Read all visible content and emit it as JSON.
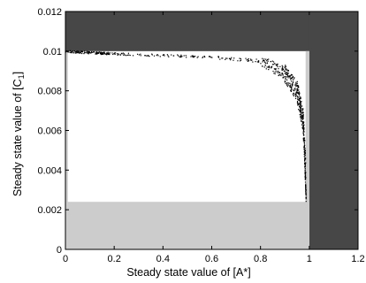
{
  "chart_data": {
    "type": "scatter",
    "title": "",
    "xlabel": "Steady state value of [A*]",
    "ylabel": "Steady state value of [C",
    "ylabel_subscript": "1",
    "ylabel_suffix": "]",
    "xlim": [
      0,
      1.2
    ],
    "ylim": [
      0,
      0.012
    ],
    "xticks": [
      "0",
      "0.2",
      "0.4",
      "0.6",
      "0.8",
      "1",
      "1.2"
    ],
    "yticks": [
      "0",
      "0.002",
      "0.004",
      "0.006",
      "0.008",
      "0.01",
      "0.012"
    ],
    "grid": false,
    "legend": "none",
    "shaded_regions": [
      {
        "kind": "dark",
        "color": "#474747",
        "x": [
          0,
          1.2
        ],
        "y": [
          0.01,
          0.012
        ]
      },
      {
        "kind": "dark",
        "color": "#474747",
        "x": [
          1,
          1.2
        ],
        "y": [
          0,
          0.012
        ]
      },
      {
        "kind": "light",
        "color": "#cccccc",
        "x": [
          0,
          1
        ],
        "y": [
          0,
          0.0024
        ]
      },
      {
        "kind": "light",
        "color": "#cccccc",
        "x": [
          0.985,
          1
        ],
        "y": [
          0,
          0.01
        ]
      },
      {
        "kind": "light",
        "color": "#cccccc",
        "x": [
          0,
          0.01
        ],
        "y": [
          0,
          0.01
        ]
      }
    ],
    "series": [
      {
        "marker_color": "#000000",
        "segments": [
          {
            "x_from": 0.0,
            "x_to": 0.22,
            "y_from": 0.00998,
            "y_to": 0.00985,
            "spread": 6e-05,
            "n": 140
          },
          {
            "x_from": 0.22,
            "x_to": 0.6,
            "y_from": 0.00985,
            "y_to": 0.0097,
            "spread": 6e-05,
            "n": 70
          },
          {
            "x_from": 0.6,
            "x_to": 0.8,
            "y_from": 0.0097,
            "y_to": 0.0095,
            "spread": 8e-05,
            "n": 40
          },
          {
            "x_from": 0.8,
            "x_to": 0.9,
            "y_from": 0.0095,
            "y_to": 0.0089,
            "spread": 0.0003,
            "n": 90
          },
          {
            "x_from": 0.9,
            "x_to": 0.95,
            "y_from": 0.0089,
            "y_to": 0.008,
            "spread": 0.0005,
            "n": 110
          },
          {
            "x_from": 0.95,
            "x_to": 0.975,
            "y_from": 0.008,
            "y_to": 0.0065,
            "spread": 0.0006,
            "n": 130
          },
          {
            "x_from": 0.975,
            "x_to": 0.985,
            "y_from": 0.0065,
            "y_to": 0.004,
            "spread": 0.0006,
            "n": 120
          },
          {
            "x_from": 0.983,
            "x_to": 0.987,
            "y_from": 0.004,
            "y_to": 0.0026,
            "spread": 0.0002,
            "n": 60
          }
        ]
      }
    ]
  }
}
